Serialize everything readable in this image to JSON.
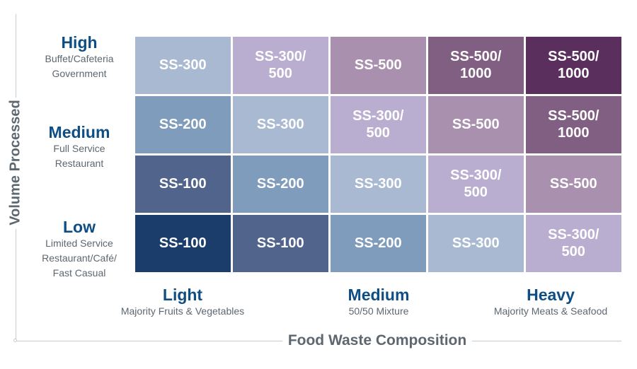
{
  "axes": {
    "y_title": "Volume Processed",
    "x_title": "Food Waste Composition"
  },
  "rows": [
    {
      "level": "High",
      "desc": [
        "Buffet/Cafeteria",
        "Government"
      ]
    },
    {
      "level": "Medium",
      "desc": [
        "Full Service",
        "Restaurant"
      ]
    },
    {
      "level": "",
      "desc": []
    },
    {
      "level": "Low",
      "desc": [
        "Limited Service",
        "Restaurant/Café/",
        "Fast Casual"
      ]
    }
  ],
  "columns": [
    {
      "level": "Light",
      "desc": "Majority Fruits & Vegetables"
    },
    {
      "level": "Medium",
      "desc": "50/50 Mixture"
    },
    {
      "level": "Heavy",
      "desc": "Majority Meats & Seafood"
    }
  ],
  "grid": [
    [
      {
        "label": "SS-300",
        "color": "#a9b9d1"
      },
      {
        "label": "SS-300/\n500",
        "color": "#b9aed0"
      },
      {
        "label": "SS-500",
        "color": "#a990ae"
      },
      {
        "label": "SS-500/\n1000",
        "color": "#805f82"
      },
      {
        "label": "SS-500/\n1000",
        "color": "#5a2e5d"
      }
    ],
    [
      {
        "label": "SS-200",
        "color": "#7f9cbc"
      },
      {
        "label": "SS-300",
        "color": "#a9b9d1"
      },
      {
        "label": "SS-300/\n500",
        "color": "#b9aed0"
      },
      {
        "label": "SS-500",
        "color": "#a990ae"
      },
      {
        "label": "SS-500/\n1000",
        "color": "#805f82"
      }
    ],
    [
      {
        "label": "SS-100",
        "color": "#51648c"
      },
      {
        "label": "SS-200",
        "color": "#7f9cbc"
      },
      {
        "label": "SS-300",
        "color": "#a9b9d1"
      },
      {
        "label": "SS-300/\n500",
        "color": "#b9aed0"
      },
      {
        "label": "SS-500",
        "color": "#a990ae"
      }
    ],
    [
      {
        "label": "SS-100",
        "color": "#1b3d6b"
      },
      {
        "label": "SS-100",
        "color": "#51648c"
      },
      {
        "label": "SS-200",
        "color": "#7f9cbc"
      },
      {
        "label": "SS-300",
        "color": "#a9b9d1"
      },
      {
        "label": "SS-300/\n500",
        "color": "#b9aed0"
      }
    ]
  ]
}
